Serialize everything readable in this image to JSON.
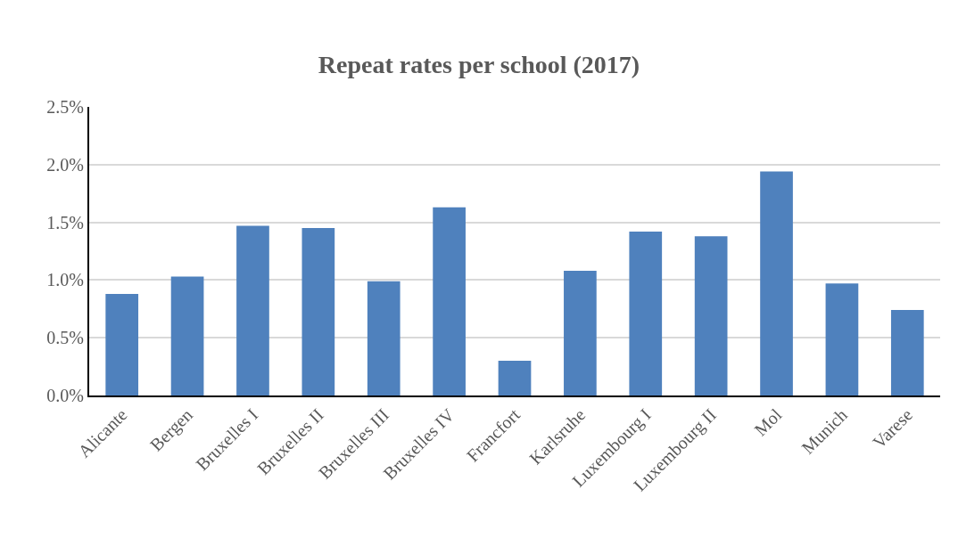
{
  "chart_data": {
    "type": "bar",
    "title": "Repeat rates per school (2017)",
    "categories": [
      "Alicante",
      "Bergen",
      "Bruxelles I",
      "Bruxelles II",
      "Bruxelles III",
      "Bruxelles IV",
      "Francfort",
      "Karlsruhe",
      "Luxembourg I",
      "Luxembourg II",
      "Mol",
      "Munich",
      "Varese"
    ],
    "values": [
      0.88,
      1.03,
      1.47,
      1.45,
      0.99,
      1.63,
      0.3,
      1.08,
      1.42,
      1.38,
      1.94,
      0.97,
      0.74
    ],
    "color": "#4f81bd",
    "ylim": [
      0,
      2.5
    ],
    "yticks": [
      {
        "value": 0,
        "label": "0.0%"
      },
      {
        "value": 0.5,
        "label": "0.5%"
      },
      {
        "value": 1.0,
        "label": "1.0%"
      },
      {
        "value": 1.5,
        "label": "1.5%"
      },
      {
        "value": 2.0,
        "label": "2.0%"
      },
      {
        "value": 2.5,
        "label": "2.5%"
      }
    ],
    "grid": "y"
  }
}
